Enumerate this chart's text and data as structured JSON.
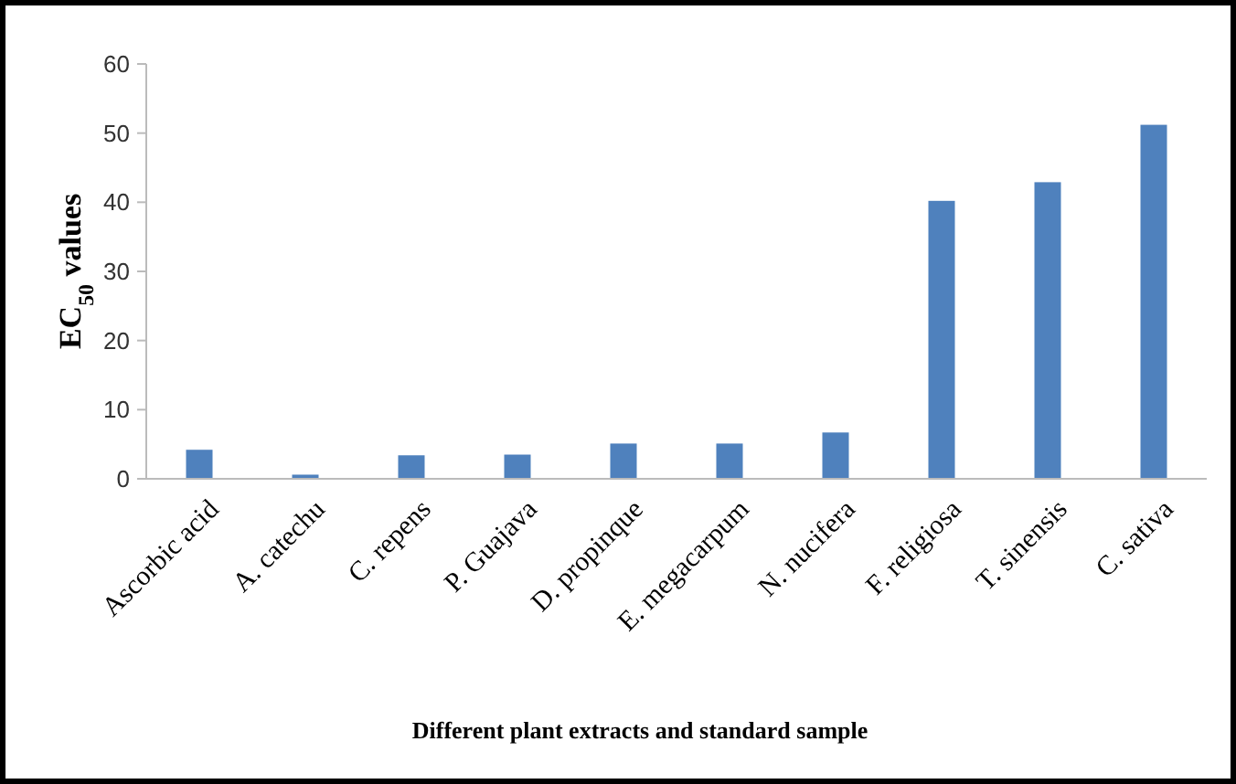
{
  "chart_data": {
    "type": "bar",
    "xlabel": "Different plant extracts and standard sample",
    "ylabel": "EC$_{50}$ values",
    "categories": [
      "Ascorbic acid",
      "A. catechu",
      "C. repens",
      "P. Guajava",
      "D. propinque",
      "E. megacarpum",
      "N. nucifera",
      "F. religiosa",
      "T. sinensis",
      "C. sativa"
    ],
    "values": [
      4.2,
      0.6,
      3.4,
      3.5,
      5.1,
      5.1,
      6.7,
      40.2,
      42.9,
      51.2
    ],
    "color": "#4f81bd",
    "ylim": [
      0,
      60
    ],
    "yticks": [
      0,
      10,
      20,
      30,
      40,
      50,
      60
    ],
    "grid": false
  }
}
